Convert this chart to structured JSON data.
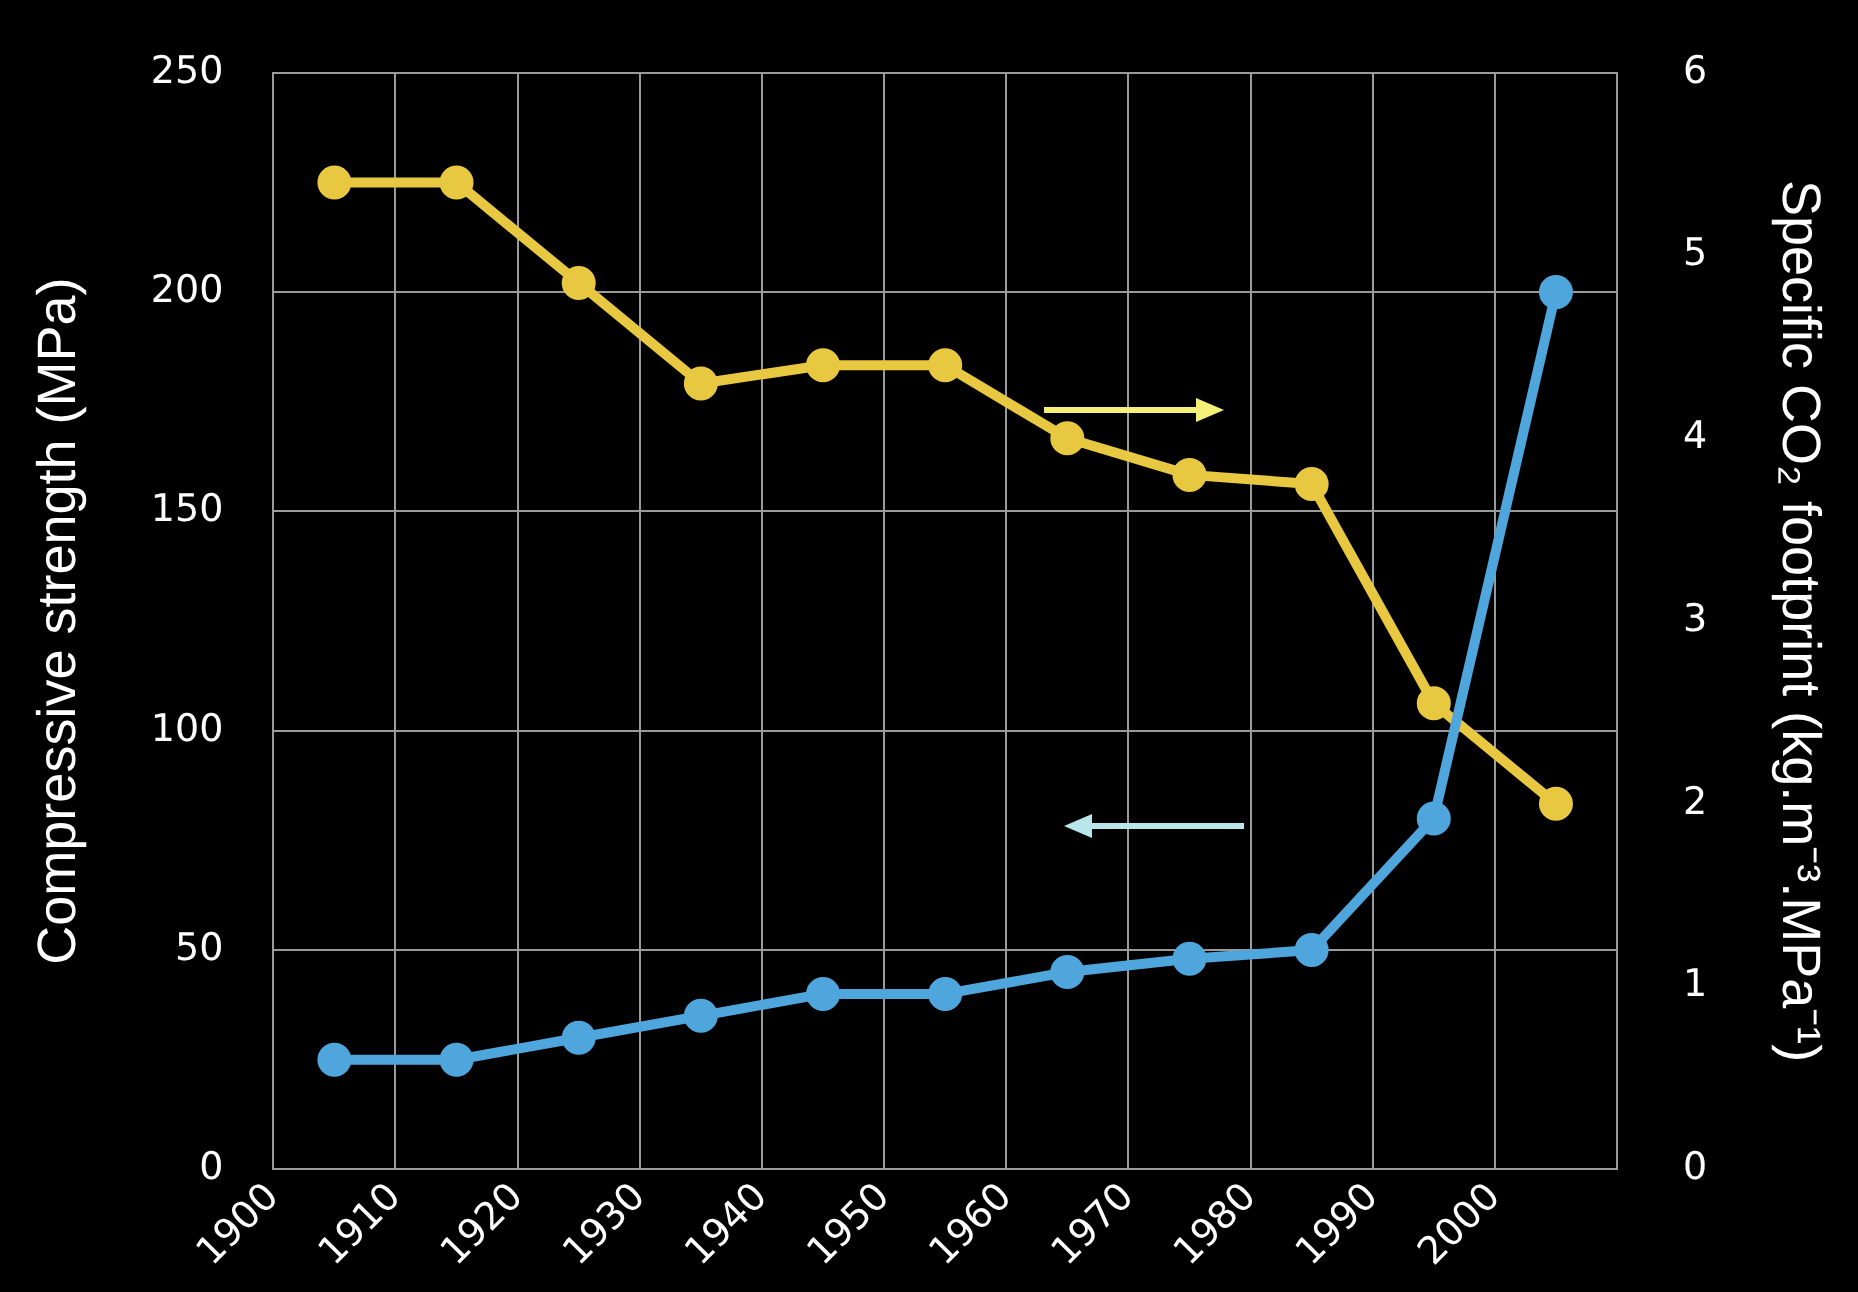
{
  "chart_data": {
    "type": "line",
    "ylabel": "Compressive strength (MPa)",
    "y2label": "Specific CO₂ footprint (kg.m⁻³.MPa⁻¹)",
    "x": [
      1905,
      1915,
      1925,
      1935,
      1945,
      1955,
      1965,
      1975,
      1985,
      1995,
      2005
    ],
    "xlim": [
      1900,
      2010
    ],
    "xticks": [
      1900,
      1910,
      1920,
      1930,
      1940,
      1950,
      1960,
      1970,
      1980,
      1990,
      2000
    ],
    "ylim": [
      0,
      250
    ],
    "yticks": [
      0,
      50,
      100,
      150,
      200,
      250
    ],
    "y2lim": [
      0,
      6
    ],
    "y2ticks": [
      0,
      1,
      2,
      3,
      4,
      5,
      6
    ],
    "series": [
      {
        "color": "#4ea6dc",
        "values": [
          25,
          25,
          30,
          35,
          40,
          40,
          45,
          48,
          50,
          80,
          200
        ]
      },
      {
        "color": "#e8c840",
        "axis": "y2",
        "values": [
          5.4,
          5.4,
          4.85,
          4.3,
          4.4,
          4.4,
          4.0,
          3.8,
          3.75,
          2.55,
          2.0
        ]
      }
    ],
    "grid": true,
    "marker": "circle",
    "line_style": "solid",
    "legend": false
  }
}
